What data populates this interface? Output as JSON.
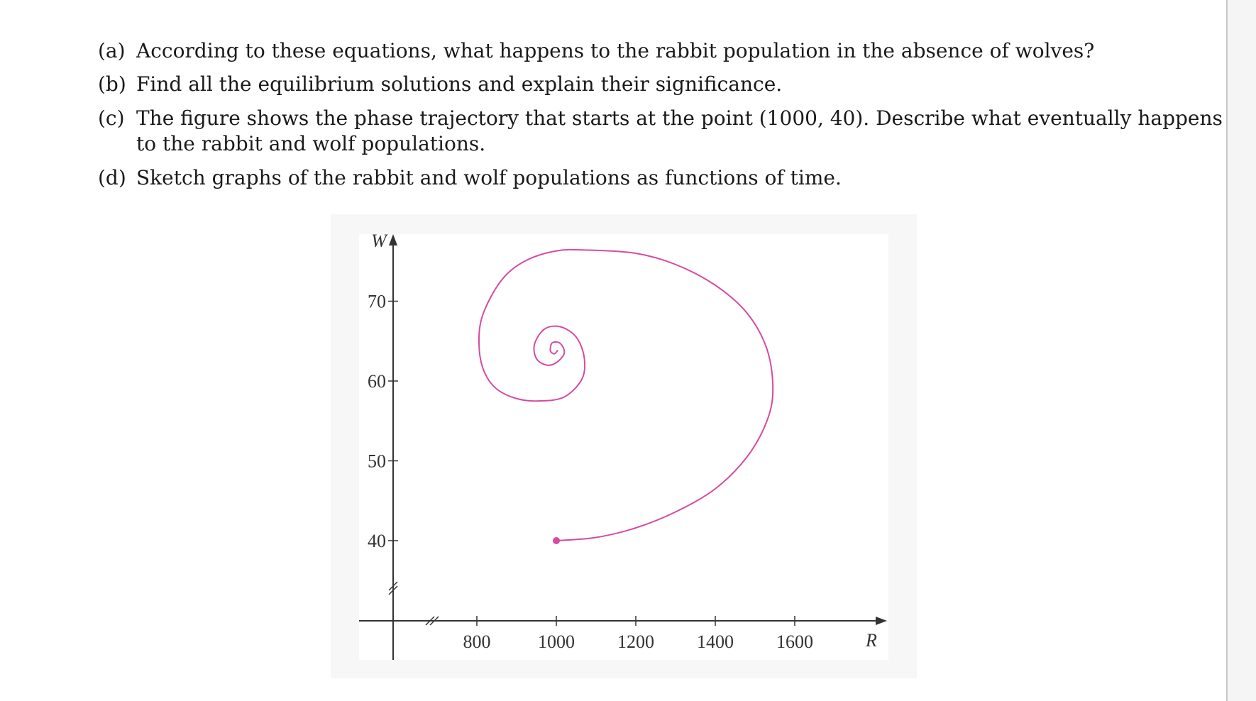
{
  "questions": [
    {
      "label": "(a)",
      "text": "According to these equations, what happens to the rabbit population in the absence of wolves?"
    },
    {
      "label": "(b)",
      "text": "Find all the equilibrium solutions and explain their significance."
    },
    {
      "label": "(c)",
      "text": "The figure shows the phase trajectory that starts at the point (1000, 40). Describe what eventually happens",
      "cont": "to the rabbit and wolf populations."
    },
    {
      "label": "(d)",
      "text": "Sketch graphs of the rabbit and wolf populations as functions of time."
    }
  ],
  "colors": {
    "trajectory": "#d64ba0",
    "axis": "#333333",
    "frame": "#f7f7f7"
  },
  "chart_data": {
    "type": "line",
    "title": "",
    "xlabel": "R",
    "ylabel": "W",
    "x_ticks": [
      800,
      1000,
      1200,
      1400,
      1600
    ],
    "y_ticks": [
      40,
      50,
      60,
      70
    ],
    "xlim": [
      700,
      1800
    ],
    "ylim": [
      30,
      78
    ],
    "axis_breaks": [
      "x",
      "y"
    ],
    "start_point": {
      "x": 1000,
      "y": 40
    },
    "series": [
      {
        "name": "",
        "points": [
          [
            1000,
            40
          ],
          [
            1100,
            40.4
          ],
          [
            1200,
            41.6
          ],
          [
            1300,
            43.6
          ],
          [
            1400,
            46.5
          ],
          [
            1480,
            50.5
          ],
          [
            1530,
            55
          ],
          [
            1545,
            59
          ],
          [
            1530,
            64
          ],
          [
            1480,
            68.5
          ],
          [
            1400,
            72
          ],
          [
            1300,
            74.6
          ],
          [
            1200,
            76
          ],
          [
            1080,
            76.4
          ],
          [
            1000,
            76.3
          ],
          [
            920,
            75
          ],
          [
            860,
            72.5
          ],
          [
            813,
            68
          ],
          [
            806,
            64
          ],
          [
            820,
            61
          ],
          [
            850,
            59
          ],
          [
            900,
            57.8
          ],
          [
            955,
            57.5
          ],
          [
            1020,
            58
          ],
          [
            1065,
            60.3
          ],
          [
            1070,
            63
          ],
          [
            1050,
            65.5
          ],
          [
            1010,
            66.8
          ],
          [
            970,
            66.5
          ],
          [
            945,
            64.6
          ],
          [
            950,
            62.8
          ],
          [
            975,
            62
          ],
          [
            1000,
            62.3
          ],
          [
            1020,
            63.5
          ],
          [
            1010,
            64.7
          ],
          [
            990,
            64.8
          ],
          [
            985,
            63.8
          ],
          [
            995,
            63.4
          ],
          [
            1003,
            63.8
          ]
        ]
      }
    ]
  }
}
